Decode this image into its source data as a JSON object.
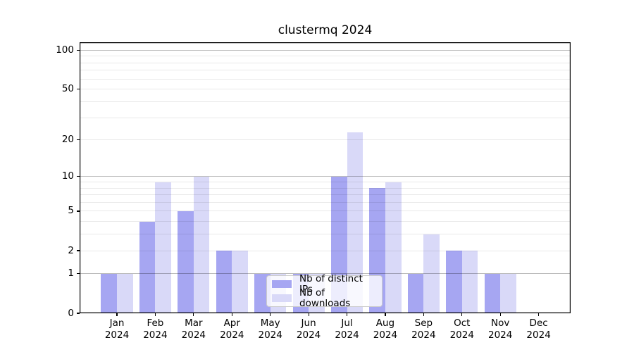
{
  "title": "clustermq 2024",
  "colors": {
    "distinct_ips": "#a6a6f2",
    "downloads": "#d9d9f8",
    "spine": "#000000",
    "major_gridline": "#bdbdbd",
    "minor_gridline": "#e9e9e9",
    "legend_border": "#cccccc"
  },
  "chart_data": {
    "type": "bar",
    "title": "clustermq 2024",
    "categories": [
      "Jan 2024",
      "Feb 2024",
      "Mar 2024",
      "Apr 2024",
      "May 2024",
      "Jun 2024",
      "Jul 2024",
      "Aug 2024",
      "Sep 2024",
      "Oct 2024",
      "Nov 2024",
      "Dec 2024"
    ],
    "series": [
      {
        "name": "Nb of distinct IPs",
        "color": "#a6a6f2",
        "values": [
          1,
          4,
          5,
          2,
          1,
          1,
          10,
          8,
          1,
          2,
          1,
          0
        ]
      },
      {
        "name": "Nb of downloads",
        "color": "#d9d9f8",
        "values": [
          1,
          9,
          10,
          2,
          1,
          1,
          23,
          9,
          3,
          2,
          1,
          0
        ]
      }
    ],
    "xlabel": "",
    "ylabel": "",
    "yscale": "log1p",
    "ylim": [
      0,
      115
    ],
    "y_ticks": [
      0,
      1,
      2,
      5,
      10,
      20,
      50,
      100
    ],
    "gridlines": {
      "major": [
        1,
        10,
        100
      ],
      "minor": [
        2,
        3,
        4,
        5,
        6,
        7,
        8,
        9,
        20,
        30,
        40,
        50,
        60,
        70,
        80,
        90
      ]
    },
    "grid": "on",
    "legend_position": "inside lower-center"
  }
}
